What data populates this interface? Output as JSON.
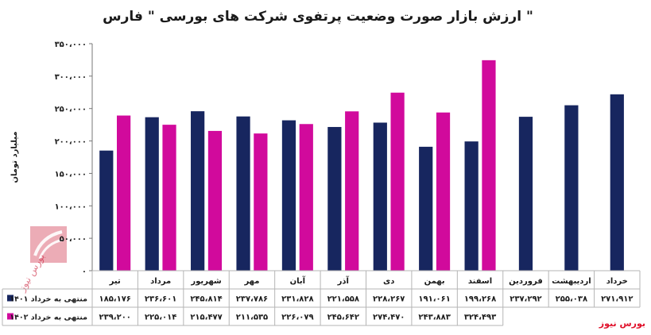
{
  "chart_data": {
    "type": "bar",
    "title": "ارزش بازار صورت وضعیت پرتفوی شرکت های بورسی \" فارس \"",
    "ylabel": "میلیارد تومان",
    "ylim": [
      0,
      350000
    ],
    "yticks": [
      0,
      50000,
      100000,
      150000,
      200000,
      250000,
      300000,
      350000
    ],
    "ytick_labels": [
      "۰",
      "۵۰،۰۰۰",
      "۱۰۰،۰۰۰",
      "۱۵۰،۰۰۰",
      "۲۰۰،۰۰۰",
      "۲۵۰،۰۰۰",
      "۳۰۰،۰۰۰",
      "۳۵۰،۰۰۰"
    ],
    "categories": [
      "تیر",
      "مرداد",
      "شهریور",
      "مهر",
      "آبان",
      "آذر",
      "دی",
      "بهمن",
      "اسفند",
      "فروردین",
      "اردیبهشت",
      "خرداد"
    ],
    "grid": false,
    "legend": "bottom-left-table",
    "series": [
      {
        "name": "منتهی به خرداد ۱۴۰۱",
        "color": "#17265f",
        "values": [
          185176,
          236601,
          245814,
          237786,
          231828,
          221558,
          228267,
          191061,
          199268,
          237292,
          255038,
          271912
        ],
        "labels": [
          "۱۸۵،۱۷۶",
          "۲۳۶،۶۰۱",
          "۲۴۵،۸۱۴",
          "۲۳۷،۷۸۶",
          "۲۳۱،۸۲۸",
          "۲۲۱،۵۵۸",
          "۲۲۸،۲۶۷",
          "۱۹۱،۰۶۱",
          "۱۹۹،۲۶۸",
          "۲۳۷،۲۹۲",
          "۲۵۵،۰۳۸",
          "۲۷۱،۹۱۲"
        ]
      },
      {
        "name": "منتهی به خرداد ۱۴۰۲",
        "color": "#d10a9c",
        "values": [
          239200,
          225014,
          215477,
          211535,
          226079,
          245642,
          274470,
          243883,
          324493,
          null,
          null,
          null
        ],
        "labels": [
          "۲۳۹،۲۰۰",
          "۲۲۵،۰۱۴",
          "۲۱۵،۴۷۷",
          "۲۱۱،۵۳۵",
          "۲۲۶،۰۷۹",
          "۲۴۵،۶۴۲",
          "۲۷۴،۴۷۰",
          "۲۴۳،۸۸۳",
          "۳۲۴،۴۹۳",
          "",
          "",
          ""
        ]
      }
    ]
  },
  "source_label": "بورس نیوز",
  "watermark_text": "بورس نیوز"
}
